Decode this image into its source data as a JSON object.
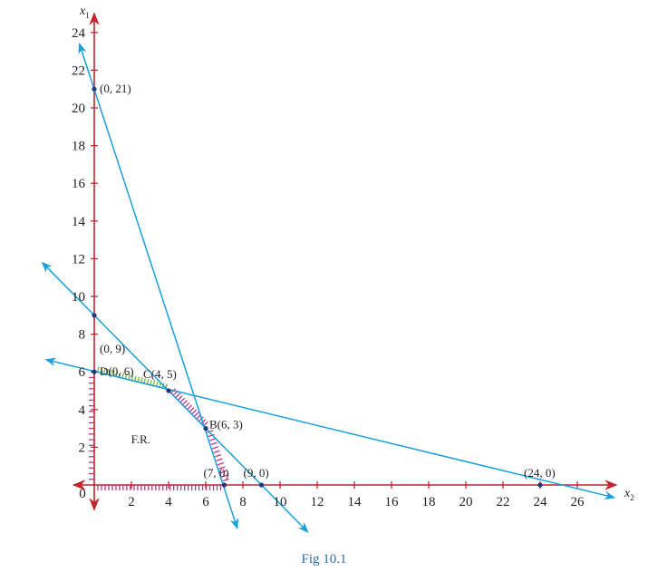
{
  "caption": "Fig 10.1",
  "colors": {
    "axis": "#c1272d",
    "line": "#1aa0d8",
    "point": "#1a3a7a",
    "hatch_axes": "#c0348c",
    "hatch_upper": "#7ab648",
    "hatch_lower": "#c0348c",
    "text": "#222222"
  },
  "chart_data": {
    "type": "line",
    "x_axis": {
      "label": "x",
      "subscript": "2",
      "ticks": [
        2,
        4,
        6,
        8,
        10,
        12,
        14,
        16,
        18,
        20,
        22,
        24,
        26
      ],
      "range": [
        -1.6,
        28.4
      ]
    },
    "y_axis": {
      "label": "x",
      "subscript": "1",
      "ticks": [
        2,
        4,
        6,
        8,
        10,
        12,
        14,
        16,
        18,
        20,
        22,
        24
      ],
      "range": [
        -1.6,
        25.3
      ]
    },
    "origin_label": "0",
    "lines": [
      {
        "name": "",
        "from": [
          -2.6,
          6.65
        ],
        "to": [
          28.0,
          -0.67
        ]
      },
      {
        "name": "",
        "from": [
          -2.8,
          11.8
        ],
        "to": [
          11.5,
          -2.5
        ]
      },
      {
        "name": "",
        "from": [
          -0.8,
          23.4
        ],
        "to": [
          7.7,
          -2.3
        ]
      }
    ],
    "points": [
      {
        "x": 0,
        "y": 21,
        "label": "(0, 21)"
      },
      {
        "x": 0,
        "y": 9,
        "label": "(0, 9)"
      },
      {
        "x": 0,
        "y": 6,
        "label": "D(0, 6)"
      },
      {
        "x": 4,
        "y": 5,
        "label": "C(4, 5)"
      },
      {
        "x": 6,
        "y": 3,
        "label": "B(6, 3)"
      },
      {
        "x": 7,
        "y": 0,
        "label": "(7, 0)"
      },
      {
        "x": 9,
        "y": 0,
        "label": "(9, 0)"
      },
      {
        "x": 24,
        "y": 0,
        "label": "(24, 0)"
      }
    ],
    "feasible_region": {
      "label": "F.R.",
      "vertices": [
        [
          0,
          0
        ],
        [
          7,
          0
        ],
        [
          6,
          3
        ],
        [
          4,
          5
        ],
        [
          0,
          6
        ]
      ]
    }
  }
}
